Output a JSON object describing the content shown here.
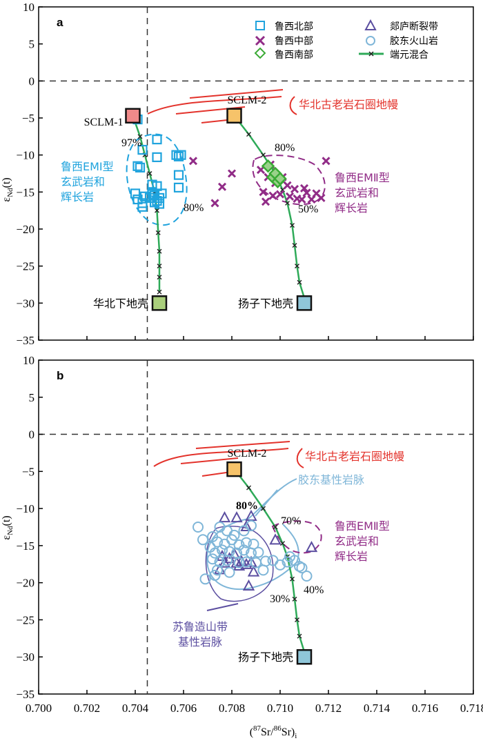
{
  "chart_data": {
    "type": "scatter",
    "xlabel": "(87Sr/86Sr)i",
    "ylabel": "εNd(t)",
    "xlim": [
      0.7,
      0.718
    ],
    "ylim": [
      -35,
      10
    ],
    "x_ticks": [
      0.7,
      0.702,
      0.704,
      0.706,
      0.708,
      0.71,
      0.712,
      0.714,
      0.716,
      0.718
    ],
    "x_tick_labels": [
      "0.700",
      "0.702",
      "0.704",
      "0.706",
      "0.708",
      "0.710",
      "0.712",
      "0.714",
      "0.716",
      "0.718"
    ],
    "y_ticks": [
      10,
      5,
      0,
      -5,
      -10,
      -15,
      -20,
      -25,
      -30,
      -35
    ],
    "y_tick_labels": [
      "10",
      "5",
      "0",
      "−5",
      "−10",
      "−15",
      "−20",
      "−25",
      "−30",
      "−35"
    ],
    "ylabel_main": "ε",
    "ylabel_sub": "Nd",
    "ylabel_tail": "(t)",
    "xlabel_pre": "(",
    "xlabel_sup1": "87",
    "xlabel_mid": "Sr/",
    "xlabel_sup2": "86",
    "xlabel_tail": "Sr)",
    "xlabel_sub": "i",
    "legend": {
      "luxi_north": "鲁西北部",
      "luxi_central": "鲁西中部",
      "luxi_south": "鲁西南部",
      "tanlu": "郯庐断裂带",
      "jiaodong_volcanic": "胶东火山岩",
      "mixing": "端元混合"
    },
    "colors": {
      "blue": "#1fa3dd",
      "purple": "#912c87",
      "green": "#3aaa35",
      "indigo": "#5b4ea0",
      "lightblue": "#7fb6d8",
      "red": "#e3322b",
      "mix": "#2eaa58",
      "sclm_red": "#f08a8a",
      "sclm_orange": "#f6c36a",
      "lc_green": "#aacf7c",
      "lc_blue": "#8fc6d9"
    },
    "ref_lines": {
      "x": 0.7045,
      "y": 0
    },
    "panels": [
      {
        "id": "a",
        "letter": "a",
        "endmembers": [
          {
            "name": "SCLM-1",
            "x": 0.7039,
            "y": -4.7,
            "color": "sclm_red"
          },
          {
            "name": "SCLM-2",
            "x": 0.7081,
            "y": -4.7,
            "color": "sclm_orange"
          },
          {
            "name": "华北下地壳",
            "x": 0.705,
            "y": -30.0,
            "color": "lc_green"
          },
          {
            "name": "扬子下地壳",
            "x": 0.711,
            "y": -30.0,
            "color": "lc_blue"
          }
        ],
        "mixing_curves": [
          [
            [
              0.7039,
              -4.7
            ],
            [
              0.7042,
              -7.5
            ],
            [
              0.7044,
              -10
            ],
            [
              0.7046,
              -12.5
            ],
            [
              0.7048,
              -15
            ],
            [
              0.7049,
              -17.5
            ],
            [
              0.70495,
              -20.5
            ],
            [
              0.705,
              -23
            ],
            [
              0.705,
              -25
            ],
            [
              0.705,
              -26.5
            ],
            [
              0.705,
              -28.5
            ]
          ],
          [
            [
              0.7081,
              -4.7
            ],
            [
              0.7087,
              -7.2
            ],
            [
              0.7093,
              -10
            ],
            [
              0.7098,
              -12.5
            ],
            [
              0.7101,
              -14.7
            ],
            [
              0.7103,
              -16.5
            ],
            [
              0.7105,
              -19.5
            ],
            [
              0.7106,
              -22.2
            ],
            [
              0.7107,
              -25
            ],
            [
              0.7108,
              -27.2
            ],
            [
              0.711,
              -29.3
            ]
          ]
        ],
        "series": [
          {
            "name": "鲁西北部",
            "marker": "square",
            "color": "blue",
            "points": [
              [
                0.7041,
                -5.2
              ],
              [
                0.7043,
                -9.3
              ],
              [
                0.7041,
                -11.5
              ],
              [
                0.7042,
                -11.7
              ],
              [
                0.7049,
                -7.9
              ],
              [
                0.7049,
                -10.3
              ],
              [
                0.7057,
                -10.0
              ],
              [
                0.7059,
                -10.0
              ],
              [
                0.7058,
                -10.2
              ],
              [
                0.7058,
                -12.7
              ],
              [
                0.7058,
                -14.4
              ],
              [
                0.704,
                -15.2
              ],
              [
                0.7043,
                -16.5
              ],
              [
                0.7044,
                -15.6
              ],
              [
                0.7047,
                -14.0
              ],
              [
                0.7047,
                -15.0
              ],
              [
                0.7048,
                -15.5
              ],
              [
                0.7046,
                -15.8
              ],
              [
                0.7049,
                -16.2
              ],
              [
                0.705,
                -15.8
              ],
              [
                0.7051,
                -15.2
              ],
              [
                0.7048,
                -16.4
              ],
              [
                0.7049,
                -14.2
              ],
              [
                0.7043,
                -17.0
              ],
              [
                0.7041,
                -16.0
              ],
              [
                0.705,
                -16.6
              ],
              [
                0.7047,
                -15.3
              ]
            ]
          },
          {
            "name": "鲁西中部",
            "marker": "x",
            "color": "purple",
            "points": [
              [
                0.7064,
                -10.8
              ],
              [
                0.7073,
                -16.5
              ],
              [
                0.7076,
                -14.3
              ],
              [
                0.708,
                -12.5
              ],
              [
                0.7093,
                -15.0
              ],
              [
                0.7094,
                -16.3
              ],
              [
                0.7096,
                -11.3
              ],
              [
                0.7098,
                -13.8
              ],
              [
                0.7097,
                -15.5
              ],
              [
                0.71,
                -15.3
              ],
              [
                0.7101,
                -13.0
              ],
              [
                0.7103,
                -14.1
              ],
              [
                0.7106,
                -14.6
              ],
              [
                0.7104,
                -15.6
              ],
              [
                0.7107,
                -15.9
              ],
              [
                0.7109,
                -16.0
              ],
              [
                0.7111,
                -15.1
              ],
              [
                0.7113,
                -16.0
              ],
              [
                0.7115,
                -15.2
              ],
              [
                0.7117,
                -15.8
              ],
              [
                0.7119,
                -10.8
              ],
              [
                0.7095,
                -13.0
              ],
              [
                0.7092,
                -12.0
              ],
              [
                0.711,
                -14.5
              ]
            ]
          },
          {
            "name": "鲁西南部",
            "marker": "diamond",
            "color": "green",
            "points": [
              [
                0.7095,
                -11.5
              ],
              [
                0.7097,
                -13.0
              ],
              [
                0.7099,
                -13.6
              ],
              [
                0.7098,
                -12.5
              ],
              [
                0.71,
                -13.2
              ]
            ]
          }
        ]
      },
      {
        "id": "b",
        "letter": "b",
        "endmembers": [
          {
            "name": "SCLM-2",
            "x": 0.7081,
            "y": -4.7,
            "color": "sclm_orange"
          },
          {
            "name": "扬子下地壳",
            "x": 0.711,
            "y": -30.0,
            "color": "lc_blue"
          }
        ],
        "mixing_curves": [
          [
            [
              0.7081,
              -4.7
            ],
            [
              0.7087,
              -7.2
            ],
            [
              0.7093,
              -10
            ],
            [
              0.7098,
              -12.5
            ],
            [
              0.7101,
              -14.7
            ],
            [
              0.7103,
              -16.5
            ],
            [
              0.7105,
              -19.5
            ],
            [
              0.7106,
              -22.2
            ],
            [
              0.7107,
              -25
            ],
            [
              0.7108,
              -27.2
            ],
            [
              0.711,
              -29.3
            ]
          ]
        ],
        "series": [
          {
            "name": "郯庐断裂带",
            "marker": "triangle",
            "color": "indigo",
            "points": [
              [
                0.7077,
                -11.3
              ],
              [
                0.7082,
                -11.3
              ],
              [
                0.7088,
                -11.1
              ],
              [
                0.7086,
                -12.5
              ],
              [
                0.7098,
                -14.3
              ],
              [
                0.7113,
                -15.3
              ],
              [
                0.7076,
                -16.5
              ],
              [
                0.7079,
                -16.8
              ],
              [
                0.7081,
                -16.2
              ],
              [
                0.7082,
                -17.4
              ],
              [
                0.7084,
                -17.2
              ],
              [
                0.7086,
                -17.6
              ],
              [
                0.7088,
                -17.3
              ],
              [
                0.7089,
                -18.6
              ],
              [
                0.7087,
                -20.5
              ],
              [
                0.7077,
                -17.4
              ],
              [
                0.7075,
                -18.3
              ],
              [
                0.7083,
                -17.8
              ]
            ]
          },
          {
            "name": "胶东火山岩",
            "marker": "circle",
            "color": "lightblue",
            "points": [
              [
                0.7075,
                -12.5
              ],
              [
                0.7078,
                -13.0
              ],
              [
                0.7081,
                -13.6
              ],
              [
                0.7085,
                -13.0
              ],
              [
                0.7072,
                -13.8
              ],
              [
                0.7074,
                -14.5
              ],
              [
                0.7077,
                -14.8
              ],
              [
                0.708,
                -14.2
              ],
              [
                0.7083,
                -14.9
              ],
              [
                0.7086,
                -14.6
              ],
              [
                0.7089,
                -14.8
              ],
              [
                0.7071,
                -15.2
              ],
              [
                0.7073,
                -16.0
              ],
              [
                0.7076,
                -15.6
              ],
              [
                0.7079,
                -15.8
              ],
              [
                0.7082,
                -16.0
              ],
              [
                0.7085,
                -15.6
              ],
              [
                0.7088,
                -16.0
              ],
              [
                0.7091,
                -15.9
              ],
              [
                0.7072,
                -16.8
              ],
              [
                0.7075,
                -17.2
              ],
              [
                0.7078,
                -17.0
              ],
              [
                0.7083,
                -17.3
              ],
              [
                0.7086,
                -17.2
              ],
              [
                0.709,
                -17.3
              ],
              [
                0.7094,
                -17.1
              ],
              [
                0.7097,
                -17.0
              ],
              [
                0.71,
                -17.6
              ],
              [
                0.7103,
                -17.2
              ],
              [
                0.7106,
                -17.0
              ],
              [
                0.7109,
                -18.0
              ],
              [
                0.7104,
                -16.5
              ],
              [
                0.7074,
                -18.3
              ],
              [
                0.7079,
                -18.6
              ],
              [
                0.7069,
                -19.5
              ],
              [
                0.7073,
                -19.0
              ],
              [
                0.7093,
                -18.3
              ],
              [
                0.7108,
                -17.8
              ],
              [
                0.7111,
                -19.1
              ],
              [
                0.7066,
                -12.5
              ],
              [
                0.7068,
                -14.2
              ],
              [
                0.7088,
                -12.3
              ]
            ]
          }
        ]
      }
    ],
    "annotations": {
      "a_north_china_sclm": "华北古老岩石圈地幔",
      "a_emI": "鲁西EMⅠ型\n玄武岩和\n辉长岩",
      "a_emII": "鲁西EMⅡ型\n玄武岩和\n辉长岩",
      "a_pct_97": "97%",
      "a_pct_80_left": "80%",
      "a_pct_80_right": "80%",
      "a_pct_50": "50%",
      "b_north_china_sclm": "华北古老岩石圈地幔",
      "b_jiaodong_dykes": "胶东基性岩脉",
      "b_emII": "鲁西EMⅡ型\n玄武岩和\n辉长岩",
      "b_sulu": "苏鲁造山带\n基性岩脉",
      "b_pct_80": "80%",
      "b_pct_70": "70%",
      "b_pct_40": "40%",
      "b_pct_30": "30%"
    }
  }
}
